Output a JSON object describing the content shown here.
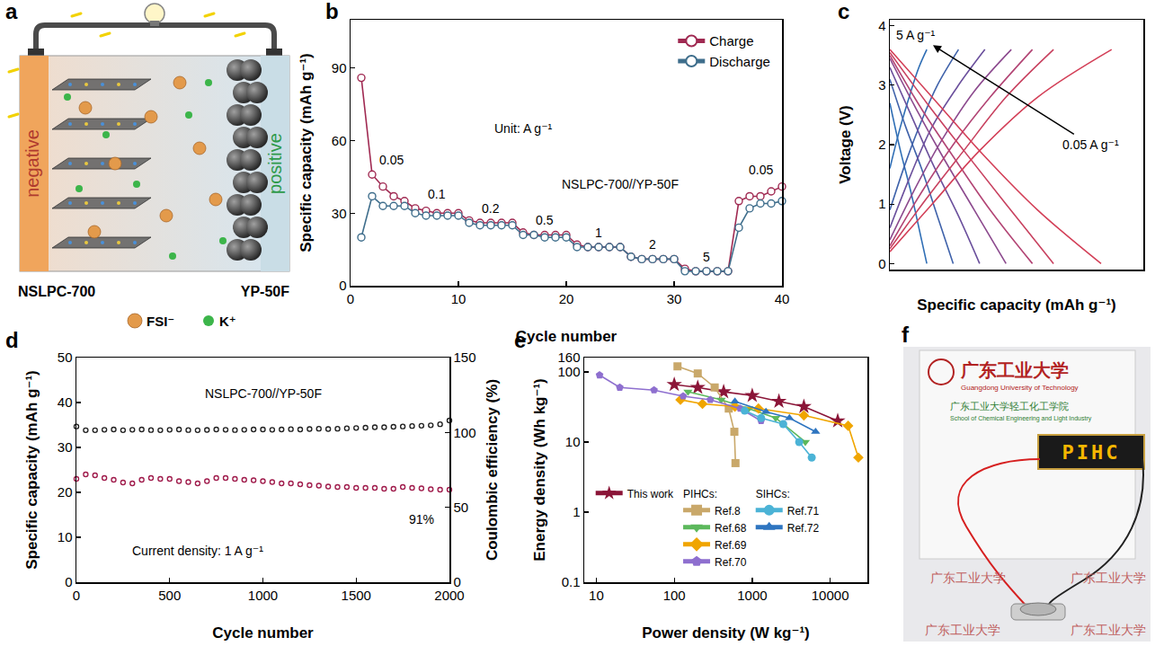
{
  "panels": {
    "a": {
      "panel": "a",
      "negative": "negative",
      "positive": "positive",
      "negative_material": "NSLPC-700",
      "positive_material": "YP-50F",
      "ions": [
        {
          "label": "FSI⁻",
          "color": "#e39a4b"
        },
        {
          "label": "K⁺",
          "color": "#3cb54a"
        }
      ]
    },
    "f": {
      "panel": "f",
      "title_cn": "广东工业大学",
      "title_en": "Guangdong University of Technology",
      "school_cn": "广东工业大学轻工化工学院",
      "school_en": "School of Chemical Engineering and Light Industry",
      "display": "PIHC",
      "watermark": "广东工业大学"
    }
  },
  "chart_data": [
    {
      "panel": "b",
      "type": "line",
      "x_label": "Cycle number",
      "y_label": "Specific capacity (mAh g⁻¹)",
      "x": [
        1,
        2,
        3,
        4,
        5,
        6,
        7,
        8,
        9,
        10,
        11,
        12,
        13,
        14,
        15,
        16,
        17,
        18,
        19,
        20,
        21,
        22,
        23,
        24,
        25,
        26,
        27,
        28,
        29,
        30,
        31,
        32,
        33,
        34,
        35,
        36,
        37,
        38,
        39,
        40
      ],
      "xlim": [
        0,
        40
      ],
      "xticks": [
        0,
        10,
        20,
        30,
        40
      ],
      "ylim": [
        0,
        110
      ],
      "yticks": [
        0,
        30,
        60,
        90
      ],
      "marker": "open circle",
      "legend": "top right",
      "series": [
        {
          "name": "Charge",
          "color": "#a02a52",
          "values": [
            86,
            46,
            41,
            37,
            35,
            32,
            31,
            30,
            30,
            30,
            27,
            26,
            26,
            26,
            26,
            22,
            21,
            21,
            21,
            21,
            17,
            16,
            16,
            16,
            16,
            12,
            11,
            11,
            11,
            11,
            7,
            6,
            6,
            6,
            6,
            35,
            37,
            37,
            39,
            41
          ]
        },
        {
          "name": "Discharge",
          "color": "#3f6e8c",
          "values": [
            20,
            37,
            33,
            33,
            33,
            30,
            29,
            29,
            29,
            29,
            26,
            25,
            25,
            25,
            25,
            21,
            21,
            20,
            20,
            20,
            16,
            16,
            16,
            16,
            16,
            12,
            11,
            11,
            11,
            11,
            6,
            6,
            6,
            6,
            6,
            24,
            32,
            34,
            34,
            35
          ]
        }
      ],
      "annotations": [
        {
          "text": "0.05",
          "x": 3.8,
          "y": 52
        },
        {
          "text": "0.1",
          "x": 8,
          "y": 38
        },
        {
          "text": "0.2",
          "x": 13,
          "y": 32
        },
        {
          "text": "0.5",
          "x": 18,
          "y": 27
        },
        {
          "text": "1",
          "x": 23,
          "y": 22
        },
        {
          "text": "2",
          "x": 28,
          "y": 17
        },
        {
          "text": "5",
          "x": 33,
          "y": 12
        },
        {
          "text": "0.05",
          "x": 38,
          "y": 48
        },
        {
          "text": "Unit: A g⁻¹",
          "x": 16,
          "y": 65
        },
        {
          "text": "NSLPC-700//YP-50F",
          "x": 25,
          "y": 42
        }
      ]
    },
    {
      "panel": "c",
      "type": "line",
      "x_label": "Specific capacity (mAh g⁻¹)",
      "y_label": "Voltage (V)",
      "xlim": [
        0,
        48
      ],
      "ylim": [
        -0.1,
        4.1
      ],
      "yticks": [
        0,
        1,
        2,
        3,
        4
      ],
      "tick_labels": "y",
      "series": [
        {
          "color": "#2f6eb5",
          "x": [
            0,
            2,
            4,
            5.5,
            7
          ],
          "values": [
            1.6,
            2.3,
            2.9,
            3.3,
            3.6
          ]
        },
        {
          "color": "#2f6eb5",
          "x": [
            0,
            2,
            4,
            6,
            7
          ],
          "values": [
            2.7,
            1.9,
            1.2,
            0.4,
            0
          ]
        },
        {
          "color": "#3f62aa",
          "x": [
            0,
            3,
            6,
            9,
            13
          ],
          "values": [
            0.9,
            1.7,
            2.4,
            3.0,
            3.6
          ]
        },
        {
          "color": "#3f62aa",
          "x": [
            0,
            3,
            6,
            9,
            12
          ],
          "values": [
            3.1,
            2.3,
            1.6,
            0.8,
            0
          ]
        },
        {
          "color": "#6a4f9c",
          "x": [
            0,
            4,
            8,
            13,
            18
          ],
          "values": [
            0.6,
            1.5,
            2.3,
            3.0,
            3.6
          ]
        },
        {
          "color": "#6a4f9c",
          "x": [
            0,
            4,
            8,
            13,
            17
          ],
          "values": [
            3.3,
            2.5,
            1.7,
            0.8,
            0
          ]
        },
        {
          "color": "#8c4a8e",
          "x": [
            0,
            5,
            10,
            16,
            23
          ],
          "values": [
            0.4,
            1.3,
            2.1,
            2.9,
            3.6
          ]
        },
        {
          "color": "#8c4a8e",
          "x": [
            0,
            5,
            10,
            16,
            22
          ],
          "values": [
            3.45,
            2.6,
            1.8,
            0.9,
            0
          ]
        },
        {
          "color": "#b24474",
          "x": [
            0,
            6,
            12,
            19,
            27
          ],
          "values": [
            0.3,
            1.2,
            2.0,
            2.8,
            3.6
          ]
        },
        {
          "color": "#b24474",
          "x": [
            0,
            6,
            12,
            19,
            27
          ],
          "values": [
            3.5,
            2.6,
            1.8,
            0.9,
            0
          ]
        },
        {
          "color": "#c8415f",
          "x": [
            0,
            7,
            14,
            22,
            31
          ],
          "values": [
            0.25,
            1.1,
            1.9,
            2.8,
            3.6
          ]
        },
        {
          "color": "#c8415f",
          "x": [
            0,
            7,
            14,
            22,
            31
          ],
          "values": [
            3.55,
            2.7,
            1.9,
            1.0,
            0
          ]
        },
        {
          "color": "#d33f57",
          "x": [
            0,
            8,
            17,
            28,
            42
          ],
          "values": [
            0.2,
            1.0,
            1.9,
            2.8,
            3.6
          ]
        },
        {
          "color": "#d33f57",
          "x": [
            0,
            9,
            18,
            28,
            40
          ],
          "values": [
            3.6,
            2.7,
            1.8,
            0.9,
            0
          ]
        }
      ],
      "annotations": [
        {
          "text": "5 A g⁻¹",
          "x": 5,
          "y": 3.85
        },
        {
          "text": "0.05 A g⁻¹",
          "x": 38,
          "y": 2.0
        }
      ]
    },
    {
      "panel": "d",
      "type": "scatter",
      "x_label": "Cycle number",
      "y_label": "Specific capacity (mAh g⁻¹)",
      "y2_label": "Coulombic efficiency (%)",
      "x": [
        0,
        50,
        100,
        150,
        200,
        250,
        300,
        350,
        400,
        450,
        500,
        550,
        600,
        650,
        700,
        750,
        800,
        850,
        900,
        950,
        1000,
        1050,
        1100,
        1150,
        1200,
        1250,
        1300,
        1350,
        1400,
        1450,
        1500,
        1550,
        1600,
        1650,
        1700,
        1750,
        1800,
        1850,
        1900,
        1950,
        2000
      ],
      "xlim": [
        0,
        2000
      ],
      "xticks": [
        0,
        500,
        1000,
        1500,
        2000
      ],
      "ylim": [
        0,
        50
      ],
      "yticks": [
        0,
        10,
        20,
        30,
        40,
        50
      ],
      "y2lim": [
        0,
        150
      ],
      "y2ticks": [
        0,
        50,
        100,
        150
      ],
      "marker": "open circle",
      "series": [
        {
          "color": "#a01c4c",
          "values": [
            23.0,
            24.0,
            23.8,
            23.2,
            22.8,
            22.2,
            22.0,
            22.8,
            23.2,
            23.0,
            23.0,
            22.5,
            22.3,
            22.0,
            22.5,
            23.2,
            23.2,
            23.0,
            22.8,
            22.7,
            22.5,
            22.3,
            22.0,
            22.0,
            21.8,
            21.6,
            21.5,
            21.3,
            21.2,
            21.2,
            21.0,
            21.0,
            21.0,
            20.8,
            20.8,
            21.2,
            21.0,
            20.9,
            20.7,
            20.6,
            20.6
          ]
        },
        {
          "color": "#222222",
          "axis": "y2",
          "values": [
            104,
            101.5,
            101.5,
            101.8,
            102,
            101.5,
            101.8,
            102,
            101.6,
            101.5,
            101.8,
            102,
            101.6,
            101.5,
            101.7,
            102,
            101.8,
            101.6,
            101.8,
            102,
            102,
            101.8,
            102,
            102.2,
            102,
            102.3,
            102.5,
            102.3,
            102.5,
            102.8,
            103,
            103.2,
            103.5,
            103.5,
            103.8,
            104,
            104.3,
            104.5,
            104.8,
            105.5,
            108
          ]
        }
      ],
      "annotations": [
        {
          "text": "NSLPC-700//YP-50F",
          "x": 1000,
          "y": 42
        },
        {
          "text": "Current density: 1 A g⁻¹",
          "x": 650,
          "y": 7
        },
        {
          "text": "91%",
          "x": 1850,
          "y": 14
        }
      ]
    },
    {
      "panel": "e",
      "type": "scatter",
      "log": true,
      "line_style": "solid",
      "x_label": "Power density (W kg⁻¹)",
      "y_label": "Energy density (Wh kg⁻¹)",
      "xlim": [
        7,
        30000
      ],
      "xticks": [
        10,
        100,
        1000,
        10000
      ],
      "ylim": [
        0.1,
        160
      ],
      "yticks": [
        0.1,
        1,
        10,
        100,
        160
      ],
      "legend": "bottom left",
      "series": [
        {
          "name": "This work",
          "color": "#8b1538",
          "marker": "star",
          "x": [
            100,
            200,
            430,
            1000,
            2200,
            4600,
            12500
          ],
          "values": [
            66,
            60,
            52,
            46,
            38,
            32,
            20
          ]
        },
        {
          "name": "Ref.8",
          "color": "#c9a86a",
          "marker": "square",
          "x": [
            110,
            200,
            330,
            500,
            590,
            610
          ],
          "values": [
            120,
            95,
            60,
            30,
            14,
            5
          ]
        },
        {
          "name": "Ref.68",
          "color": "#5cb85c",
          "marker": "triangle-down",
          "x": [
            150,
            400,
            900,
            2000,
            4800
          ],
          "values": [
            52,
            40,
            30,
            22,
            10
          ]
        },
        {
          "name": "Ref.69",
          "color": "#f0a500",
          "marker": "diamond",
          "x": [
            120,
            230,
            600,
            1200,
            4600,
            17000,
            23000
          ],
          "values": [
            40,
            35,
            32,
            30,
            24,
            17,
            6
          ]
        },
        {
          "name": "Ref.70",
          "color": "#8e6fcf",
          "marker": "pentagon",
          "x": [
            11,
            20,
            55,
            130,
            290,
            700,
            1300
          ],
          "values": [
            90,
            60,
            55,
            45,
            40,
            30,
            20
          ]
        },
        {
          "name": "Ref.71",
          "color": "#4bb3d6",
          "marker": "circle",
          "x": [
            800,
            1300,
            2500,
            4000,
            5800
          ],
          "values": [
            28,
            22,
            18,
            10,
            6
          ]
        },
        {
          "name": "Ref.72",
          "color": "#2e75c0",
          "marker": "triangle-up",
          "x": [
            600,
            1500,
            3000,
            6500
          ],
          "values": [
            38,
            27,
            22,
            14
          ]
        }
      ],
      "legend_groups": [
        {
          "title": "PIHCs:",
          "members": [
            "Ref.8",
            "Ref.68",
            "Ref.69",
            "Ref.70"
          ]
        },
        {
          "title": "SIHCs:",
          "members": [
            "Ref.71",
            "Ref.72"
          ]
        }
      ]
    }
  ]
}
